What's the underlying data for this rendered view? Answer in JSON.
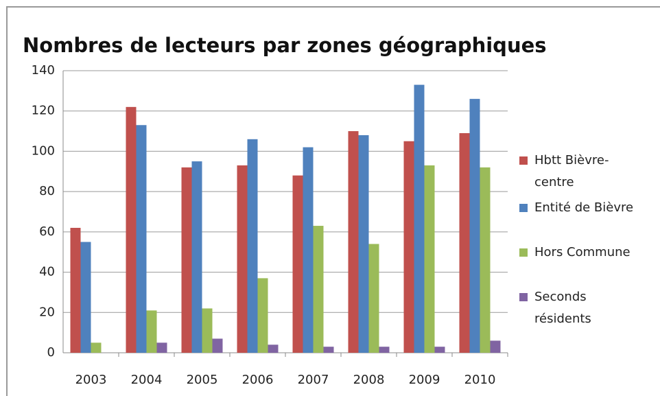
{
  "chart_data": {
    "type": "bar",
    "title": "Nombres de lecteurs par zones géographiques",
    "categories": [
      "2003",
      "2004",
      "2005",
      "2006",
      "2007",
      "2008",
      "2009",
      "2010"
    ],
    "series": [
      {
        "name": "Hbtt Bièvre-centre",
        "color": "#c0504d",
        "values": [
          62,
          122,
          92,
          93,
          88,
          110,
          105,
          109
        ]
      },
      {
        "name": "Entité de Bièvre",
        "color": "#4f81bd",
        "values": [
          55,
          113,
          95,
          106,
          102,
          108,
          133,
          126
        ]
      },
      {
        "name": "Hors Commune",
        "color": "#9bbb59",
        "values": [
          5,
          21,
          22,
          37,
          63,
          54,
          93,
          92
        ]
      },
      {
        "name": "Seconds résidents",
        "color": "#8064a2",
        "values": [
          0,
          5,
          7,
          4,
          3,
          3,
          3,
          6
        ]
      }
    ],
    "ylim": [
      0,
      140
    ],
    "yticks": [
      0,
      20,
      40,
      60,
      80,
      100,
      120,
      140
    ],
    "grid": true,
    "legend": "right"
  }
}
